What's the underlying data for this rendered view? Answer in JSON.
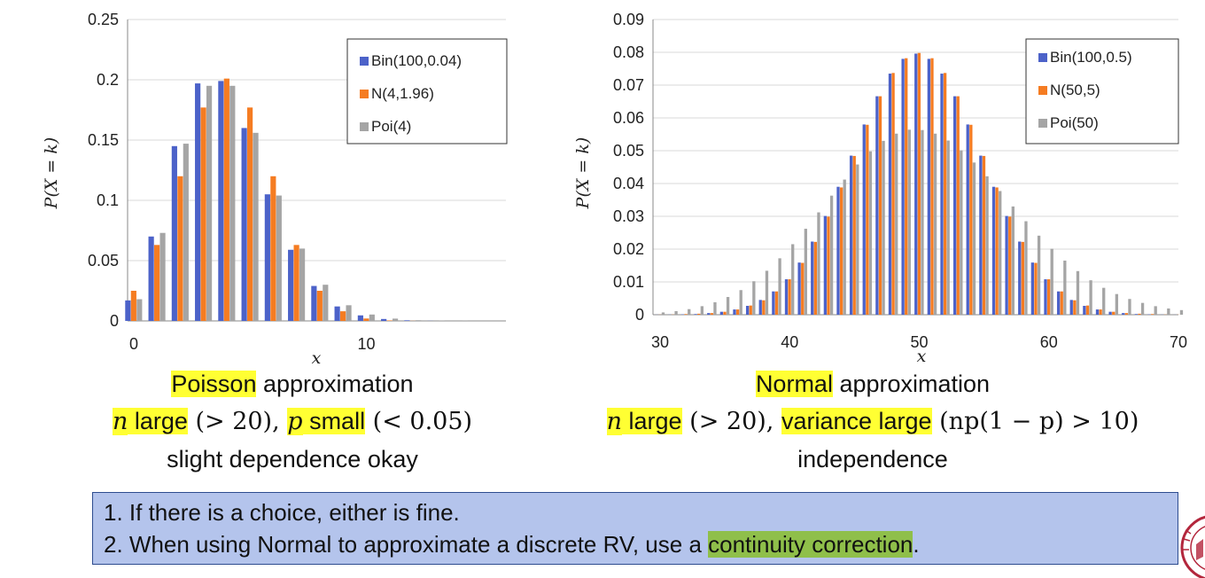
{
  "charts": {
    "left": {
      "yticks": [
        "0",
        "0.05",
        "0.1",
        "0.15",
        "0.2",
        "0.25"
      ],
      "xticks": [
        "0",
        "10"
      ],
      "ylabel": "P(X = k)",
      "xlabel": "x",
      "legend": [
        "Bin(100,0.04)",
        "N(4,1.96)",
        "Poi(4)"
      ]
    },
    "right": {
      "yticks": [
        "0",
        "0.01",
        "0.02",
        "0.03",
        "0.04",
        "0.05",
        "0.06",
        "0.07",
        "0.08",
        "0.09"
      ],
      "xticks": [
        "30",
        "40",
        "50",
        "60",
        "70"
      ],
      "ylabel": "P(X = k)",
      "xlabel": "x",
      "legend": [
        "Bin(100,0.5)",
        "N(50,5)",
        "Poi(50)"
      ]
    }
  },
  "captions": {
    "left": {
      "line1_hl": "Poisson",
      "line1_rest": " approximation",
      "n": "n",
      "large": " large",
      "gt20": " (> 20), ",
      "p": "p",
      "small": " small",
      "lt005": " (< 0.05)",
      "line3": "slight dependence okay"
    },
    "right": {
      "line1_hl": "Normal",
      "line1_rest": " approximation",
      "n": "n",
      "large": " large",
      "gt20": " (> 20), ",
      "var": "variance large",
      "cond": " (np(1 − p) > 10)",
      "line3": "independence"
    }
  },
  "note": {
    "line1": "1. If there is a choice, either is fine.",
    "line2_pre": "2. When using Normal to approximate a discrete RV, use a ",
    "line2_hl": "continuity correction",
    "line2_post": "."
  },
  "colors": {
    "bin": "#4c62c9",
    "normal": "#f57c22",
    "poisson": "#a5a5a5",
    "grid": "#d9d9d9"
  },
  "chart_data": [
    {
      "type": "bar",
      "ylabel": "P(X = k)",
      "xlabel": "x",
      "xlim": [
        0,
        16
      ],
      "ylim": [
        0,
        0.25
      ],
      "categories": [
        0,
        1,
        2,
        3,
        4,
        5,
        6,
        7,
        8,
        9,
        10,
        11,
        12,
        13,
        14,
        15
      ],
      "legend_position": "top-right",
      "series": [
        {
          "name": "Bin(100,0.04)",
          "values": [
            0.017,
            0.07,
            0.145,
            0.197,
            0.199,
            0.16,
            0.105,
            0.059,
            0.029,
            0.012,
            0.0046,
            0.0016,
            0.0005,
            0.0001,
            0.0,
            0.0
          ]
        },
        {
          "name": "N(4,1.96)",
          "values": [
            0.025,
            0.063,
            0.12,
            0.177,
            0.201,
            0.177,
            0.12,
            0.063,
            0.025,
            0.008,
            0.002,
            0.0004,
            0.0001,
            0.0,
            0.0,
            0.0
          ]
        },
        {
          "name": "Poi(4)",
          "values": [
            0.018,
            0.073,
            0.147,
            0.195,
            0.195,
            0.156,
            0.104,
            0.06,
            0.03,
            0.013,
            0.0053,
            0.0019,
            0.0006,
            0.0002,
            0.0001,
            0.0
          ]
        }
      ]
    },
    {
      "type": "bar",
      "ylabel": "P(X = k)",
      "xlabel": "x",
      "xlim": [
        30,
        70
      ],
      "ylim": [
        0,
        0.09
      ],
      "categories": [
        30,
        31,
        32,
        33,
        34,
        35,
        36,
        37,
        38,
        39,
        40,
        41,
        42,
        43,
        44,
        45,
        46,
        47,
        48,
        49,
        50,
        51,
        52,
        53,
        54,
        55,
        56,
        57,
        58,
        59,
        60,
        61,
        62,
        63,
        64,
        65,
        66,
        67,
        68,
        69,
        70
      ],
      "legend_position": "top-right",
      "series": [
        {
          "name": "Bin(100,0.5)",
          "values": [
            2e-05,
            4e-05,
            0.0001,
            0.0002,
            0.0005,
            0.0009,
            0.0016,
            0.0027,
            0.0045,
            0.0071,
            0.0108,
            0.0159,
            0.0223,
            0.0301,
            0.039,
            0.0485,
            0.058,
            0.0666,
            0.0735,
            0.078,
            0.0796,
            0.078,
            0.0735,
            0.0666,
            0.058,
            0.0485,
            0.039,
            0.0301,
            0.0223,
            0.0159,
            0.0108,
            0.0071,
            0.0045,
            0.0027,
            0.0016,
            0.0009,
            0.0005,
            0.0002,
            0.0001,
            4e-05,
            2e-05
          ]
        },
        {
          "name": "N(50,5)",
          "values": [
            3e-05,
            5e-05,
            0.0002,
            0.0003,
            0.0005,
            0.0009,
            0.0016,
            0.0028,
            0.0044,
            0.0071,
            0.0108,
            0.0158,
            0.0222,
            0.0299,
            0.0388,
            0.0484,
            0.0579,
            0.0666,
            0.0737,
            0.0782,
            0.0798,
            0.0782,
            0.0737,
            0.0666,
            0.0579,
            0.0484,
            0.0388,
            0.0299,
            0.0222,
            0.0158,
            0.0108,
            0.0071,
            0.0044,
            0.0028,
            0.0016,
            0.0009,
            0.0005,
            0.0003,
            0.0002,
            5e-05,
            3e-05
          ]
        },
        {
          "name": "Poi(50)",
          "values": [
            0.0007,
            0.0011,
            0.0017,
            0.0026,
            0.0038,
            0.0054,
            0.0075,
            0.0102,
            0.0134,
            0.0172,
            0.0215,
            0.0262,
            0.0312,
            0.0363,
            0.0412,
            0.0458,
            0.0498,
            0.053,
            0.0552,
            0.0564,
            0.0563,
            0.0552,
            0.0531,
            0.0501,
            0.0464,
            0.0422,
            0.0377,
            0.033,
            0.0285,
            0.0241,
            0.0201,
            0.0165,
            0.0133,
            0.0105,
            0.0082,
            0.0063,
            0.0048,
            0.0036,
            0.0026,
            0.0019,
            0.0014
          ]
        }
      ]
    }
  ]
}
